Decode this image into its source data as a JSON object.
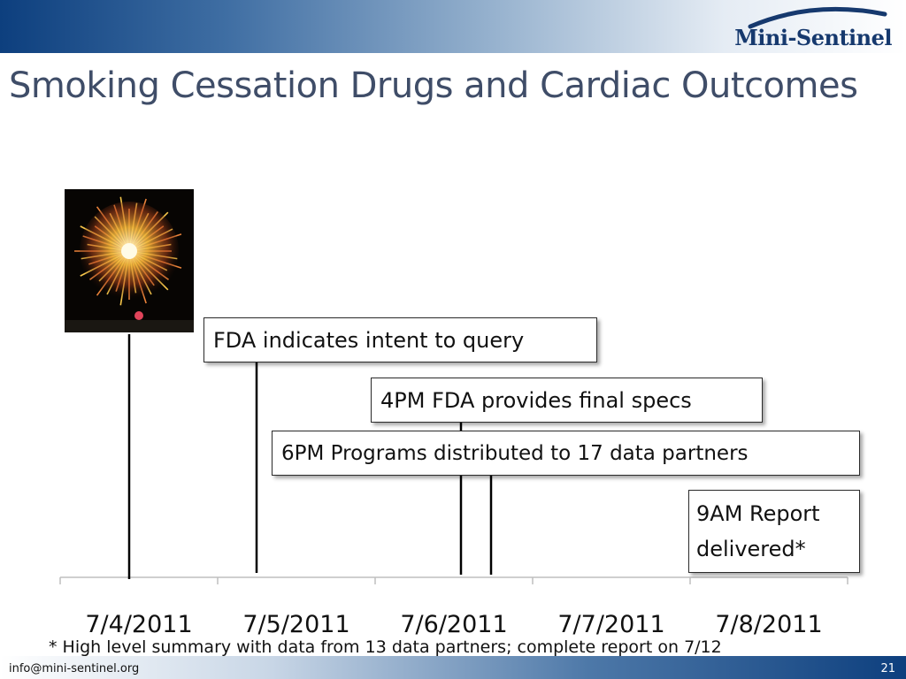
{
  "header": {
    "logo_text": "Mini-Sentinel",
    "title": "Smoking Cessation Drugs and Cardiac Outcomes"
  },
  "colors": {
    "brand_dark": "#0d3f7e",
    "title": "#3f4d68",
    "firework": "#f6c64a"
  },
  "image": {
    "icon": "fireworks-icon"
  },
  "timeline": {
    "axis": {
      "tick_labels": [
        "7/4/2011",
        "7/5/2011",
        "7/6/2011",
        "7/7/2011",
        "7/8/2011"
      ]
    },
    "events": [
      {
        "label": "FDA indicates intent to query"
      },
      {
        "label": "4PM FDA provides final specs"
      },
      {
        "label": "6PM Programs distributed to 17 data partners"
      },
      {
        "label": "9AM Report delivered*"
      }
    ]
  },
  "footnote": "* High level summary with data from 13 data partners; complete report on 7/12",
  "footer": {
    "email": "info@mini-sentinel.org",
    "slide_number": "21"
  }
}
